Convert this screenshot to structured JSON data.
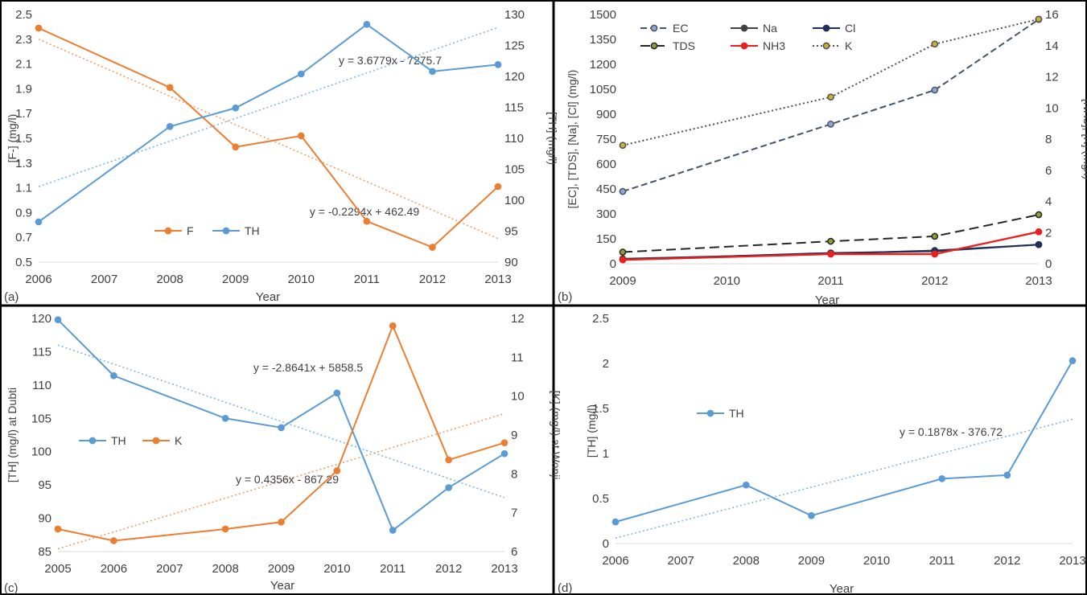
{
  "chart_data": [
    {
      "panel": "(a)",
      "type": "line",
      "xlabel": "Year",
      "ylabel": "[F-] (mg/l)",
      "ylabel_right": "[TH] (mg/l)",
      "x_ticks": [
        "2006",
        "2007",
        "2008",
        "2009",
        "2010",
        "2011",
        "2012",
        "2013"
      ],
      "y_ticks": [
        "0.5",
        "0.7",
        "0.9",
        "1.1",
        "1.3",
        "1.5",
        "1.7",
        "1.9",
        "2.1",
        "2.3",
        "2.5"
      ],
      "y2_ticks": [
        "90",
        "95",
        "100",
        "105",
        "110",
        "115",
        "120",
        "125",
        "130"
      ],
      "xlim": [
        2006,
        2013
      ],
      "ylim": [
        0.5,
        2.5
      ],
      "y2lim": [
        90,
        130
      ],
      "series": [
        {
          "name": "F",
          "axis": "left",
          "color": "#ED7D31",
          "x": [
            2006,
            2008,
            2009,
            2010,
            2011,
            2012,
            2013
          ],
          "values": [
            2.39,
            1.91,
            1.43,
            1.52,
            0.83,
            0.62,
            1.11
          ]
        },
        {
          "name": "TH",
          "axis": "right",
          "color": "#5B9BD5",
          "x": [
            2006,
            2008,
            2009,
            2010,
            2011,
            2012,
            2013
          ],
          "values": [
            96.5,
            111.9,
            114.9,
            120.4,
            128.4,
            120.8,
            121.9
          ]
        }
      ],
      "trendlines": [
        {
          "series": "F",
          "axis": "left",
          "color": "#ED7D31",
          "equation": "y = -0.2294x + 462.49",
          "x": [
            2006,
            2013
          ],
          "values": [
            2.3,
            0.69
          ]
        },
        {
          "series": "TH",
          "axis": "right",
          "color": "#5B9BD5",
          "equation": "y = 3.6779x - 7275.7",
          "x": [
            2006,
            2013
          ],
          "values": [
            102.2,
            127.9
          ]
        }
      ],
      "legend": "bottom-left",
      "grid": false
    },
    {
      "panel": "(b)",
      "type": "line",
      "xlabel": "Year",
      "ylabel": "[EC], [TDS], [Na], [Cl] (mg/l)",
      "ylabel_right": "[NH3], [K] (mg/l)",
      "x_ticks": [
        "2009",
        "2010",
        "2011",
        "2012",
        "2013"
      ],
      "y_ticks": [
        "0",
        "150",
        "300",
        "450",
        "600",
        "750",
        "900",
        "1050",
        "1200",
        "1350",
        "1500"
      ],
      "y2_ticks": [
        "0",
        "2",
        "4",
        "6",
        "8",
        "10",
        "12",
        "14",
        "16"
      ],
      "xlim": [
        2009,
        2013
      ],
      "ylim": [
        0,
        1500
      ],
      "y2lim": [
        0,
        16
      ],
      "series": [
        {
          "name": "EC",
          "axis": "left",
          "color": "#44546A",
          "dash": "8 4",
          "x": [
            2009,
            2011,
            2012,
            2013
          ],
          "values": [
            435,
            840,
            1045,
            1470
          ]
        },
        {
          "name": "Na",
          "axis": "left",
          "color": "#404040",
          "dash": "",
          "x": [
            2009,
            2011,
            2012,
            2013
          ],
          "values": [
            30,
            60,
            80,
            115
          ]
        },
        {
          "name": "Cl",
          "axis": "left",
          "color": "#1F2E5A",
          "dash": "",
          "x": [
            2009,
            2011,
            2012,
            2013
          ],
          "values": [
            25,
            65,
            75,
            115
          ]
        },
        {
          "name": "TDS",
          "axis": "left",
          "color": "#262626",
          "dash": "12 6",
          "x": [
            2009,
            2011,
            2012,
            2013
          ],
          "values": [
            70,
            135,
            165,
            295
          ]
        },
        {
          "name": "NH3",
          "axis": "right",
          "color": "#E8201E",
          "dash": "",
          "x": [
            2009,
            2011,
            2012,
            2013
          ],
          "values": [
            0.25,
            0.62,
            0.62,
            2.05
          ]
        },
        {
          "name": "K",
          "axis": "right",
          "color": "#505050",
          "dash": "2 3",
          "x": [
            2009,
            2011,
            2012,
            2013
          ],
          "values": [
            7.6,
            10.7,
            14.1,
            15.7
          ]
        }
      ],
      "legend": "top",
      "grid": false
    },
    {
      "panel": "(c)",
      "type": "line",
      "xlabel": "Year",
      "ylabel": "[TH] (mg/l) at Dubti",
      "ylabel_right": "[K] (mg/l) at Wonji",
      "x_ticks": [
        "2005",
        "2006",
        "2007",
        "2008",
        "2009",
        "2010",
        "2011",
        "2012",
        "2013"
      ],
      "y_ticks": [
        "85",
        "90",
        "95",
        "100",
        "105",
        "110",
        "115",
        "120"
      ],
      "y2_ticks": [
        "6",
        "7",
        "8",
        "9",
        "10",
        "11",
        "12"
      ],
      "xlim": [
        2005,
        2013
      ],
      "ylim": [
        85,
        120
      ],
      "y2lim": [
        6,
        12
      ],
      "series": [
        {
          "name": "TH",
          "axis": "left",
          "color": "#5B9BD5",
          "x": [
            2005,
            2006,
            2008,
            2009,
            2010,
            2011,
            2012,
            2013
          ],
          "values": [
            119.8,
            111.4,
            105.0,
            103.6,
            108.8,
            88.2,
            94.6,
            99.7
          ]
        },
        {
          "name": "K",
          "axis": "right",
          "color": "#ED7D31",
          "x": [
            2005,
            2006,
            2008,
            2009,
            2010,
            2011,
            2012,
            2013
          ],
          "values": [
            6.58,
            6.28,
            6.58,
            6.76,
            8.08,
            11.81,
            8.36,
            8.8
          ]
        }
      ],
      "trendlines": [
        {
          "series": "TH",
          "axis": "left",
          "color": "#5B9BD5",
          "equation": "y = -2.8641x + 5858.5",
          "x": [
            2005,
            2013
          ],
          "values": [
            116.0,
            93.1
          ]
        },
        {
          "series": "K",
          "axis": "right",
          "color": "#ED7D31",
          "equation": "y = 0.4356x - 867.29",
          "x": [
            2005,
            2013
          ],
          "values": [
            6.07,
            9.55
          ]
        }
      ],
      "legend": "middle-left",
      "grid": false
    },
    {
      "panel": "(d)",
      "type": "line",
      "xlabel": "Year",
      "ylabel": "[TH] (mg/l)",
      "x_ticks": [
        "2006",
        "2007",
        "2008",
        "2009",
        "2010",
        "2011",
        "2012",
        "2013"
      ],
      "y_ticks": [
        "0",
        "0.5",
        "1",
        "1.5",
        "2",
        "2.5"
      ],
      "xlim": [
        2006,
        2013
      ],
      "ylim": [
        0,
        2.5
      ],
      "series": [
        {
          "name": "TH",
          "axis": "left",
          "color": "#5B9BD5",
          "x": [
            2006,
            2008,
            2009,
            2011,
            2012,
            2013
          ],
          "values": [
            0.24,
            0.65,
            0.31,
            0.72,
            0.76,
            2.03
          ]
        }
      ],
      "trendlines": [
        {
          "series": "TH",
          "axis": "left",
          "color": "#5B9BD5",
          "equation": "y = 0.1878x - 376.72",
          "x": [
            2006,
            2013
          ],
          "values": [
            0.06,
            1.38
          ]
        }
      ],
      "legend": "middle-left",
      "grid": false
    }
  ]
}
